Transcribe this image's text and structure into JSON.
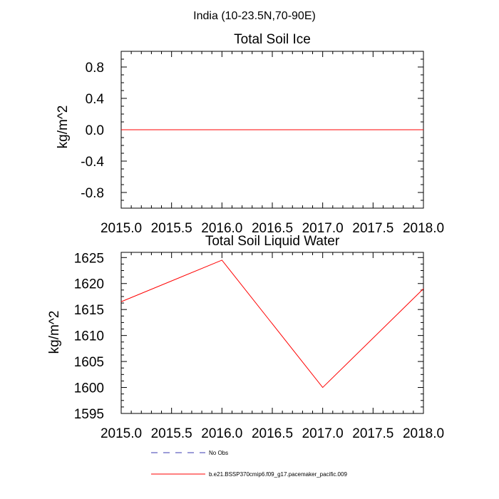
{
  "figure": {
    "suptitle": "India (10-23.5N,70-90E)",
    "legend": [
      {
        "label": "No Obs",
        "color": "#3b3bb0",
        "style": "dashed"
      },
      {
        "label": "b.e21.BSSP370cmip6.f09_g17.pacemaker_pacific.009",
        "color": "#ff0000",
        "style": "solid"
      }
    ]
  },
  "chart_data": [
    {
      "type": "line",
      "title": "Total Soil Ice",
      "xlabel": "",
      "ylabel": "kg/m^2",
      "xlim": [
        2015.0,
        2018.0
      ],
      "ylim": [
        -1.0,
        1.0
      ],
      "xticks": [
        2015.0,
        2015.5,
        2016.0,
        2016.5,
        2017.0,
        2017.5,
        2018.0
      ],
      "xtick_labels": [
        "2015.0",
        "2015.5",
        "2016.0",
        "2016.5",
        "2017.0",
        "2017.5",
        "2018.0"
      ],
      "yticks": [
        -0.8,
        -0.4,
        0.0,
        0.4,
        0.8
      ],
      "ytick_labels": [
        "-0.8",
        "-0.4",
        "0.0",
        "0.4",
        "0.8"
      ],
      "grid": false,
      "series": [
        {
          "color": "#ff0000",
          "x": [
            2015.0,
            2016.0,
            2017.0,
            2018.0
          ],
          "y": [
            0.0,
            0.0,
            0.0,
            0.0
          ]
        }
      ]
    },
    {
      "type": "line",
      "title": "Total Soil Liquid Water",
      "xlabel": "",
      "ylabel": "kg/m^2",
      "xlim": [
        2015.0,
        2018.0
      ],
      "ylim": [
        1595,
        1626
      ],
      "xticks": [
        2015.0,
        2015.5,
        2016.0,
        2016.5,
        2017.0,
        2017.5,
        2018.0
      ],
      "xtick_labels": [
        "2015.0",
        "2015.5",
        "2016.0",
        "2016.5",
        "2017.0",
        "2017.5",
        "2018.0"
      ],
      "yticks": [
        1595,
        1600,
        1605,
        1610,
        1615,
        1620,
        1625
      ],
      "ytick_labels": [
        "1595",
        "1600",
        "1605",
        "1610",
        "1615",
        "1620",
        "1625"
      ],
      "grid": false,
      "series": [
        {
          "color": "#ff0000",
          "x": [
            2015.0,
            2016.0,
            2017.0,
            2018.0
          ],
          "y": [
            1616.5,
            1624.5,
            1600.0,
            1619.0
          ]
        }
      ]
    }
  ]
}
